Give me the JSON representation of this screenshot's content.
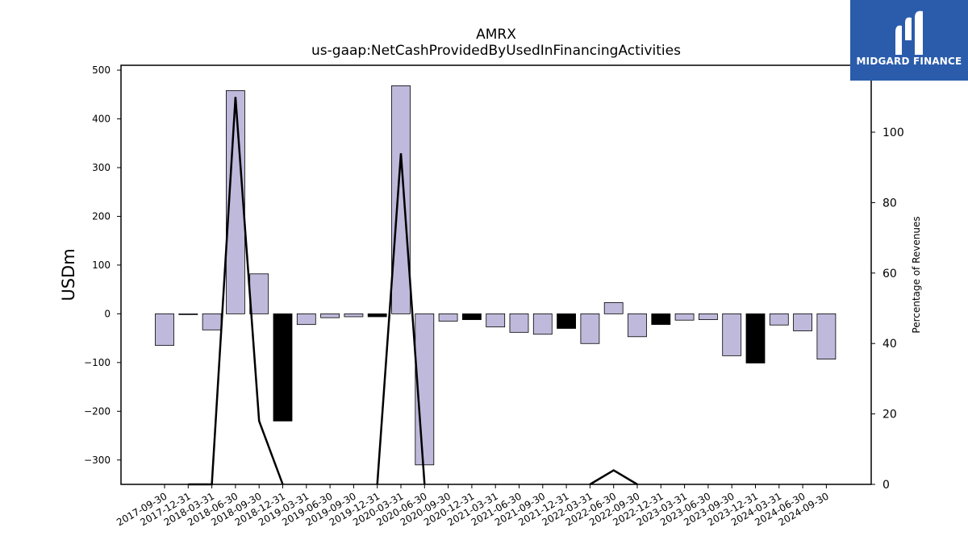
{
  "chart_data": {
    "type": "bar",
    "title": "AMRX",
    "subtitle": "us-gaap:NetCashProvidedByUsedInFinancingActivities",
    "ylabel": "USDm",
    "ylabel_right": "Percentage of Revenues",
    "ylim": [
      -350,
      510
    ],
    "ylim_right": [
      0,
      119
    ],
    "yticks": [
      -300,
      -200,
      -100,
      0,
      100,
      200,
      300,
      400,
      500
    ],
    "yticks_right": [
      0,
      20,
      40,
      60,
      80,
      100
    ],
    "categories": [
      "2017-09-30",
      "2017-12-31",
      "2018-03-31",
      "2018-06-30",
      "2018-09-30",
      "2018-12-31",
      "2019-03-31",
      "2019-06-30",
      "2019-09-30",
      "2019-12-31",
      "2020-03-31",
      "2020-06-30",
      "2020-09-30",
      "2020-12-31",
      "2021-03-31",
      "2021-06-30",
      "2021-09-30",
      "2021-12-31",
      "2022-03-31",
      "2022-06-30",
      "2022-09-30",
      "2022-12-31",
      "2023-03-31",
      "2023-06-30",
      "2023-09-30",
      "2023-12-31",
      "2024-03-31",
      "2024-06-30",
      "2024-09-30"
    ],
    "series": [
      {
        "type": "bar",
        "values": [
          -65,
          -1,
          -33,
          458,
          82,
          -220,
          -22,
          -8,
          -6,
          -6,
          468,
          -310,
          -15,
          -12,
          -27,
          -38,
          -42,
          -30,
          -61,
          23,
          -47,
          -22,
          -13,
          -12,
          -86,
          -101,
          -23,
          -35,
          -93
        ],
        "colors": [
          "#bfbadb",
          "#bfbadb",
          "#bfbadb",
          "#bfbadb",
          "#bfbadb",
          "#000000",
          "#bfbadb",
          "#bfbadb",
          "#bfbadb",
          "#000000",
          "#bfbadb",
          "#bfbadb",
          "#bfbadb",
          "#000000",
          "#bfbadb",
          "#bfbadb",
          "#bfbadb",
          "#000000",
          "#bfbadb",
          "#bfbadb",
          "#bfbadb",
          "#000000",
          "#bfbadb",
          "#bfbadb",
          "#bfbadb",
          "#000000",
          "#bfbadb",
          "#bfbadb",
          "#bfbadb"
        ]
      },
      {
        "type": "line",
        "axis": "right",
        "color": "#000000",
        "values": [
          null,
          0,
          0,
          110,
          18,
          0,
          null,
          null,
          null,
          0,
          94,
          0,
          null,
          null,
          null,
          null,
          null,
          null,
          0,
          4,
          0,
          null,
          null,
          null,
          null,
          null,
          null,
          null,
          null
        ]
      }
    ],
    "grid": false
  },
  "logo": {
    "text": "MIDGARD FINANCE"
  }
}
